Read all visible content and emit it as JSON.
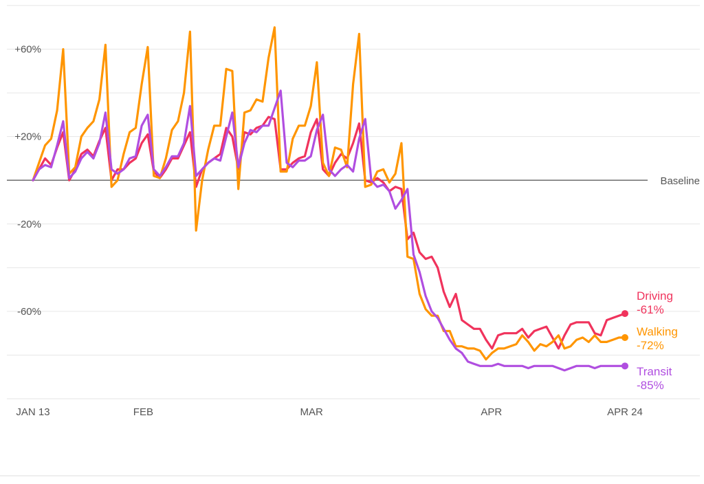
{
  "chart_data": {
    "type": "line",
    "title": "",
    "xlabel": "",
    "ylabel": "",
    "ylim": [
      -100,
      80
    ],
    "y_ticks": [
      {
        "value": 60,
        "label": "+60%"
      },
      {
        "value": 20,
        "label": "+20%"
      },
      {
        "value": -20,
        "label": "-20%"
      },
      {
        "value": -60,
        "label": "-60%"
      }
    ],
    "y_gridlines": [
      80,
      60,
      40,
      20,
      -20,
      -40,
      -60,
      -80,
      -100
    ],
    "x_start_date": "2020-01-13",
    "x_end_date": "2020-04-24",
    "x_ticks": [
      {
        "date": "2020-01-13",
        "label": "JAN 13"
      },
      {
        "date": "2020-02-01",
        "label": "FEB"
      },
      {
        "date": "2020-03-01",
        "label": "MAR"
      },
      {
        "date": "2020-04-01",
        "label": "APR"
      },
      {
        "date": "2020-04-24",
        "label": "APR 24"
      }
    ],
    "baseline": {
      "value": 0,
      "label": "Baseline"
    },
    "series": [
      {
        "name": "Driving",
        "end_label": "-61%",
        "color": "#f0335c",
        "values": [
          0,
          5,
          10,
          7,
          15,
          22,
          0,
          5,
          12,
          14,
          11,
          18,
          24,
          0,
          5,
          5,
          8,
          10,
          17,
          21,
          4,
          1,
          5,
          10,
          10,
          16,
          22,
          -3,
          5,
          8,
          10,
          12,
          24,
          20,
          5,
          22,
          21,
          24,
          25,
          29,
          28,
          5,
          5,
          8,
          10,
          11,
          22,
          28,
          5,
          2,
          8,
          12,
          10,
          17,
          26,
          0,
          -1,
          1,
          -1,
          -5,
          -3,
          -4,
          -27,
          -24,
          -33,
          -36,
          -35,
          -40,
          -51,
          -58,
          -52,
          -64,
          -66,
          -68,
          -68,
          -73,
          -77,
          -71,
          -70,
          -70,
          -70,
          -68,
          -72,
          -69,
          -68,
          -67,
          -72,
          -77,
          -71,
          -66,
          -65,
          -65,
          -65,
          -70,
          -71,
          -64,
          -63,
          -62,
          -61
        ]
      },
      {
        "name": "Walking",
        "end_label": "-72%",
        "color": "#ff9500",
        "values": [
          0,
          8,
          16,
          19,
          32,
          60,
          3,
          6,
          20,
          24,
          27,
          37,
          62,
          -3,
          0,
          12,
          22,
          24,
          44,
          61,
          2,
          1,
          10,
          23,
          27,
          40,
          68,
          -23,
          0,
          14,
          25,
          25,
          51,
          50,
          -4,
          31,
          32,
          37,
          36,
          56,
          70,
          4,
          4,
          19,
          25,
          25,
          34,
          54,
          8,
          2,
          15,
          14,
          6,
          44,
          67,
          -3,
          -2,
          4,
          5,
          -1,
          3,
          17,
          -35,
          -36,
          -52,
          -59,
          -62,
          -62,
          -69,
          -69,
          -76,
          -76,
          -77,
          -77,
          -78,
          -82,
          -79,
          -77,
          -77,
          -76,
          -75,
          -71,
          -74,
          -78,
          -75,
          -76,
          -74,
          -71,
          -77,
          -76,
          -73,
          -72,
          -74,
          -71,
          -74,
          -74,
          -73,
          -72,
          -72
        ]
      },
      {
        "name": "Transit",
        "end_label": "-85%",
        "color": "#b04ee0",
        "values": [
          0,
          5,
          7,
          6,
          16,
          27,
          1,
          4,
          10,
          13,
          10,
          17,
          31,
          5,
          3,
          5,
          10,
          11,
          25,
          30,
          5,
          2,
          6,
          11,
          11,
          17,
          34,
          2,
          5,
          8,
          10,
          9,
          20,
          31,
          6,
          17,
          23,
          22,
          25,
          25,
          33,
          41,
          8,
          6,
          9,
          9,
          11,
          23,
          30,
          5,
          2,
          5,
          7,
          4,
          19,
          28,
          0,
          -3,
          -2,
          -5,
          -13,
          -9,
          -4,
          -34,
          -42,
          -53,
          -60,
          -63,
          -68,
          -73,
          -77,
          -79,
          -83,
          -84,
          -85,
          -85,
          -85,
          -84,
          -85,
          -85,
          -85,
          -85,
          -86,
          -85,
          -85,
          -85,
          -85,
          -86,
          -87,
          -86,
          -85,
          -85,
          -85,
          -86,
          -85,
          -85,
          -85,
          -85,
          -85
        ]
      }
    ]
  }
}
